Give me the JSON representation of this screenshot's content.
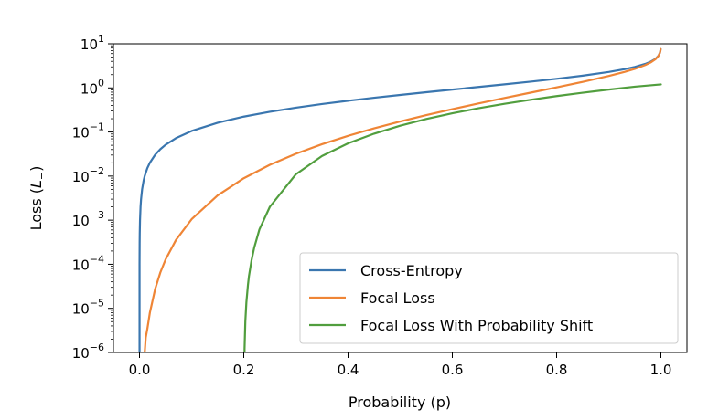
{
  "chart_data": {
    "type": "line",
    "title": "",
    "xlabel": "Probability (p)",
    "ylabel_prefix": "Loss (",
    "ylabel_var": "L",
    "ylabel_sub": "−",
    "ylabel_suffix": ")",
    "xlim": [
      -0.05,
      1.05
    ],
    "ylim_exponent": [
      -6,
      1
    ],
    "yscale": "log",
    "x_ticks": [
      0.0,
      0.2,
      0.4,
      0.6,
      0.8,
      1.0
    ],
    "x_tick_labels": [
      "0.0",
      "0.2",
      "0.4",
      "0.6",
      "0.8",
      "1.0"
    ],
    "y_ticks": [
      -6,
      -5,
      -4,
      -3,
      -2,
      -1,
      0,
      1
    ],
    "y_tick_base": "10",
    "y_tick_exponents": [
      "−6",
      "−5",
      "−4",
      "−3",
      "−2",
      "−1",
      "0",
      "1"
    ],
    "legend_position": "lower-right",
    "series": [
      {
        "name": "Cross-Entropy",
        "color": "#3a76af",
        "x": [
          0.0001,
          0.0003,
          0.0005,
          0.001,
          0.002,
          0.003,
          0.005,
          0.008,
          0.01,
          0.015,
          0.02,
          0.03,
          0.04,
          0.05,
          0.07,
          0.1,
          0.15,
          0.2,
          0.25,
          0.3,
          0.35,
          0.4,
          0.45,
          0.5,
          0.55,
          0.6,
          0.65,
          0.7,
          0.75,
          0.8,
          0.85,
          0.9,
          0.93,
          0.95,
          0.97,
          0.98,
          0.99,
          0.995,
          0.998,
          0.999,
          0.9995
        ],
        "y": [
          0.0001,
          0.0003,
          0.0005,
          0.001,
          0.002,
          0.003,
          0.00501,
          0.00803,
          0.01005,
          0.01511,
          0.0202,
          0.03046,
          0.04082,
          0.05129,
          0.07257,
          0.10536,
          0.16252,
          0.22314,
          0.28768,
          0.35667,
          0.43078,
          0.51083,
          0.59784,
          0.69315,
          0.79851,
          0.91629,
          1.0498,
          1.20397,
          1.38629,
          1.60944,
          1.89712,
          2.30259,
          2.65926,
          2.99573,
          3.50656,
          3.91202,
          4.60517,
          5.29832,
          6.21461,
          6.90776,
          7.6009
        ]
      },
      {
        "name": "Focal Loss",
        "color": "#ef8536",
        "x": [
          0.01,
          0.012,
          0.015,
          0.02,
          0.03,
          0.04,
          0.05,
          0.07,
          0.1,
          0.15,
          0.2,
          0.25,
          0.3,
          0.35,
          0.4,
          0.45,
          0.5,
          0.55,
          0.6,
          0.65,
          0.7,
          0.75,
          0.8,
          0.85,
          0.9,
          0.93,
          0.95,
          0.97,
          0.98,
          0.99,
          0.995,
          0.998,
          0.999,
          0.9995
        ],
        "y": [
          1.005e-06,
          2.18e-06,
          3.4e-06,
          8.08e-06,
          2.74e-05,
          6.53e-05,
          0.000128,
          0.000356,
          0.00105,
          0.00366,
          0.00893,
          0.018,
          0.0321,
          0.0528,
          0.0817,
          0.121,
          0.173,
          0.242,
          0.33,
          0.444,
          0.59,
          0.78,
          1.03,
          1.371,
          1.865,
          2.305,
          2.704,
          3.3,
          3.757,
          4.513,
          5.245,
          6.19,
          6.894,
          7.593
        ]
      },
      {
        "name": "Focal Loss With Probability Shift",
        "color": "#519e3e",
        "x": [
          0.2015,
          0.203,
          0.205,
          0.208,
          0.21,
          0.215,
          0.22,
          0.23,
          0.25,
          0.3,
          0.35,
          0.4,
          0.45,
          0.5,
          0.55,
          0.6,
          0.65,
          0.7,
          0.75,
          0.8,
          0.85,
          0.9,
          0.95,
          1.0
        ],
        "y": [
          1.2e-06,
          5.1e-06,
          1.36e-05,
          3.4e-05,
          5.45e-05,
          0.000125,
          0.000237,
          0.000616,
          0.00201,
          0.011,
          0.0285,
          0.0553,
          0.0917,
          0.139,
          0.197,
          0.266,
          0.345,
          0.436,
          0.538,
          0.652,
          0.778,
          0.916,
          1.066,
          1.2
        ]
      }
    ]
  }
}
